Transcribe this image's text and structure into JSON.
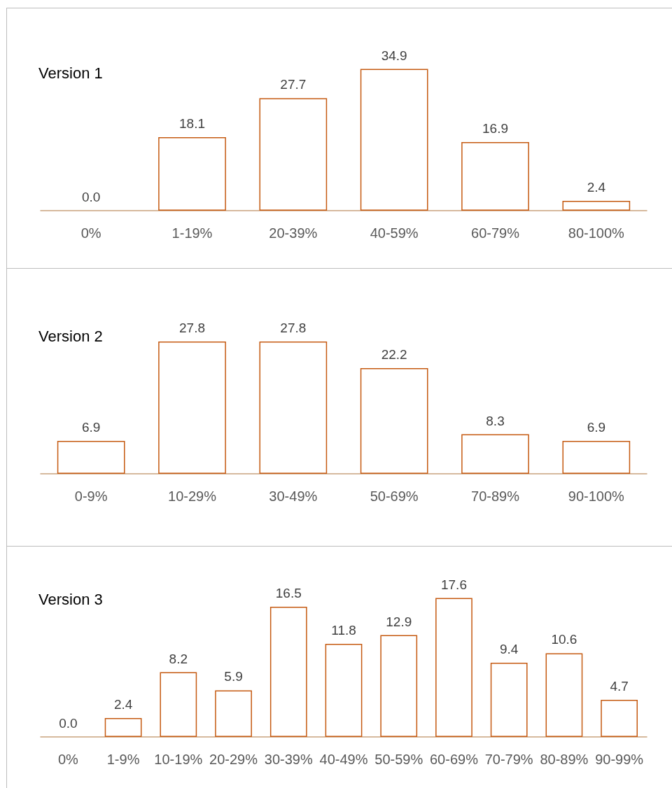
{
  "chart_data": [
    {
      "type": "bar",
      "title": "Version 1",
      "categories": [
        "0%",
        "1-19%",
        "20-39%",
        "40-59%",
        "60-79%",
        "80-100%"
      ],
      "values": [
        0.0,
        18.1,
        27.7,
        34.9,
        16.9,
        2.4
      ],
      "value_labels": [
        "0.0",
        "18.1",
        "27.7",
        "34.9",
        "16.9",
        "2.4"
      ],
      "color": "#c55a11"
    },
    {
      "type": "bar",
      "title": "Version 2",
      "categories": [
        "0-9%",
        "10-29%",
        "30-49%",
        "50-69%",
        "70-89%",
        "90-100%"
      ],
      "values": [
        6.9,
        27.8,
        27.8,
        22.2,
        8.3,
        6.9
      ],
      "value_labels": [
        "6.9",
        "27.8",
        "27.8",
        "22.2",
        "8.3",
        "6.9"
      ],
      "color": "#c55a11"
    },
    {
      "type": "bar",
      "title": "Version 3",
      "categories": [
        "0%",
        "1-9%",
        "10-19%",
        "20-29%",
        "30-39%",
        "40-49%",
        "50-59%",
        "60-69%",
        "70-79%",
        "80-89%",
        "90-99%"
      ],
      "values": [
        0.0,
        2.4,
        8.2,
        5.9,
        16.5,
        11.8,
        12.9,
        17.6,
        9.4,
        10.6,
        4.7
      ],
      "value_labels": [
        "0.0",
        "2.4",
        "8.2",
        "5.9",
        "16.5",
        "11.8",
        "12.9",
        "17.6",
        "9.4",
        "10.6",
        "4.7"
      ],
      "color": "#c55a11"
    }
  ]
}
